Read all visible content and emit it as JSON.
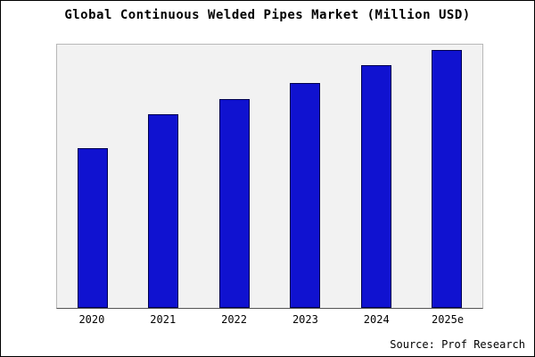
{
  "chart_data": {
    "type": "bar",
    "title": "Global Continuous Welded Pipes Market (Million USD)",
    "categories": [
      "2020",
      "2021",
      "2022",
      "2023",
      "2024",
      "2025e"
    ],
    "values": [
      62,
      75,
      81,
      87,
      94,
      100
    ],
    "xlabel": "",
    "ylabel": "",
    "ylim": [
      0,
      102
    ],
    "grid": false,
    "legend_position": "none",
    "bar_color": "#1012d0",
    "bar_border_color": "#00004d",
    "plot_background": "#f2f2f2",
    "source": "Source: Prof Research"
  }
}
